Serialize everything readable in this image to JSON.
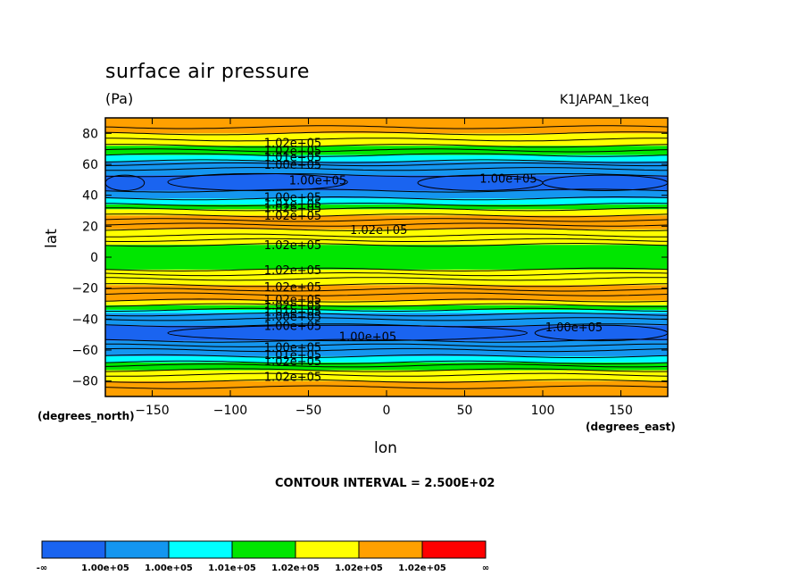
{
  "title": "surface air pressure",
  "units": "(Pa)",
  "dataset": "K1JAPAN_1keq",
  "contour_interval": "CONTOUR INTERVAL = 2.500E+02",
  "colors": {
    "c1": "#1a64f0",
    "c2": "#1496f0",
    "c3": "#00ffff",
    "c4": "#00e600",
    "c5": "#ffff00",
    "c6": "#ffa000",
    "c7": "#ff0000"
  },
  "chart_data": {
    "type": "heatmap",
    "subtype": "filled contour",
    "title": "surface air pressure",
    "units": "(Pa)",
    "xlabel": "lon",
    "ylabel": "lat",
    "x_unit": "(degrees_east)",
    "y_unit": "(degrees_north)",
    "xlim": [
      -180,
      180
    ],
    "ylim": [
      -90,
      90
    ],
    "x_ticks": [
      -150,
      -100,
      -50,
      0,
      50,
      100,
      150
    ],
    "y_ticks": [
      80,
      60,
      40,
      20,
      0,
      -20,
      -40,
      -60,
      -80
    ],
    "grid": false,
    "contour_interval": 250,
    "colorbar": {
      "labels": [
        "-∞",
        "1.00e+05",
        "1.00e+05",
        "1.01e+05",
        "1.02e+05",
        "1.02e+05",
        "1.02e+05",
        "∞"
      ],
      "colors": [
        "#1a64f0",
        "#1496f0",
        "#00ffff",
        "#00e600",
        "#ffff00",
        "#ffa000",
        "#ff0000"
      ]
    },
    "zonal_bands": [
      {
        "lat": [
          -90,
          -80
        ],
        "color": "#ffa000"
      },
      {
        "lat": [
          -80,
          -73
        ],
        "color": "#ffff00"
      },
      {
        "lat": [
          -73,
          -68
        ],
        "color": "#00e600"
      },
      {
        "lat": [
          -68,
          -64
        ],
        "color": "#00ffff"
      },
      {
        "lat": [
          -64,
          -54
        ],
        "color": "#1496f0"
      },
      {
        "lat": [
          -54,
          -44
        ],
        "color": "#1a64f0"
      },
      {
        "lat": [
          -44,
          -36
        ],
        "color": "#1496f0"
      },
      {
        "lat": [
          -36,
          -34
        ],
        "color": "#00ffff"
      },
      {
        "lat": [
          -34,
          -31
        ],
        "color": "#00e600"
      },
      {
        "lat": [
          -31,
          -28
        ],
        "color": "#ffff00"
      },
      {
        "lat": [
          -28,
          -18
        ],
        "color": "#ffa000"
      },
      {
        "lat": [
          -18,
          -8
        ],
        "color": "#ffff00"
      },
      {
        "lat": [
          -8,
          8
        ],
        "color": "#00e600"
      },
      {
        "lat": [
          8,
          18
        ],
        "color": "#ffff00"
      },
      {
        "lat": [
          18,
          27
        ],
        "color": "#ffa000"
      },
      {
        "lat": [
          27,
          31
        ],
        "color": "#ffff00"
      },
      {
        "lat": [
          31,
          34
        ],
        "color": "#00e600"
      },
      {
        "lat": [
          34,
          38
        ],
        "color": "#00ffff"
      },
      {
        "lat": [
          38,
          43
        ],
        "color": "#1496f0"
      },
      {
        "lat": [
          43,
          53
        ],
        "color": "#1a64f0"
      },
      {
        "lat": [
          53,
          62
        ],
        "color": "#1496f0"
      },
      {
        "lat": [
          62,
          66
        ],
        "color": "#00ffff"
      },
      {
        "lat": [
          66,
          72
        ],
        "color": "#00e600"
      },
      {
        "lat": [
          72,
          80
        ],
        "color": "#ffff00"
      },
      {
        "lat": [
          80,
          90
        ],
        "color": "#ffa000"
      }
    ],
    "contour_lines_lat": [
      -84,
      -80,
      -76,
      -73,
      -70,
      -68,
      -64,
      -60,
      -57,
      -54,
      -44,
      -40,
      -37,
      -34,
      -31,
      -28,
      -24,
      -21,
      -18,
      -14,
      -11,
      -8,
      8,
      11,
      14,
      18,
      21,
      24,
      27,
      31,
      34,
      38,
      43,
      53,
      57,
      60,
      62,
      66,
      69,
      72,
      76,
      80,
      84
    ],
    "low_cells": [
      {
        "lon": [
          -180,
          -155
        ],
        "lat": [
          43,
          53
        ]
      },
      {
        "lon": [
          -140,
          -25
        ],
        "lat": [
          43,
          54
        ]
      },
      {
        "lon": [
          20,
          100
        ],
        "lat": [
          43,
          53
        ]
      },
      {
        "lon": [
          100,
          180
        ],
        "lat": [
          43,
          53
        ]
      },
      {
        "lon": [
          -140,
          90
        ],
        "lat": [
          -54,
          -44
        ]
      },
      {
        "lon": [
          95,
          180
        ],
        "lat": [
          -54,
          -44
        ]
      }
    ],
    "contour_labels": [
      {
        "text": "1.02e+05",
        "lon": -60,
        "lat": 74
      },
      {
        "text": "1.02e+05",
        "lon": -60,
        "lat": 69
      },
      {
        "text": "1.01e+05",
        "lon": -60,
        "lat": 65
      },
      {
        "text": "1.00e+05",
        "lon": -60,
        "lat": 60
      },
      {
        "text": "1.00e+05",
        "lon": -44,
        "lat": 50
      },
      {
        "text": "1.00e+05",
        "lon": 78,
        "lat": 51
      },
      {
        "text": "1.00e+05",
        "lon": -60,
        "lat": 39
      },
      {
        "text": "1.01e+05",
        "lon": -60,
        "lat": 35
      },
      {
        "text": "1.02e+05",
        "lon": -60,
        "lat": 32
      },
      {
        "text": "1.02e+05",
        "lon": -60,
        "lat": 27
      },
      {
        "text": "1.02e+05",
        "lon": -5,
        "lat": 18
      },
      {
        "text": "1.02e+05",
        "lon": -60,
        "lat": 8
      },
      {
        "text": "1.02e+05",
        "lon": -60,
        "lat": -8
      },
      {
        "text": "1.02e+05",
        "lon": -60,
        "lat": -19
      },
      {
        "text": "1.02e+05",
        "lon": -60,
        "lat": -27
      },
      {
        "text": "1.02e+05",
        "lon": -60,
        "lat": -31
      },
      {
        "text": "1.01e+05",
        "lon": -60,
        "lat": -35
      },
      {
        "text": "1.00e+05",
        "lon": -60,
        "lat": -38
      },
      {
        "text": "1.00e+05",
        "lon": -60,
        "lat": -44
      },
      {
        "text": "1.00e+05",
        "lon": -12,
        "lat": -51
      },
      {
        "text": "1.00e+05",
        "lon": 120,
        "lat": -45
      },
      {
        "text": "1.00e+05",
        "lon": -60,
        "lat": -58
      },
      {
        "text": "1.01e+05",
        "lon": -60,
        "lat": -63
      },
      {
        "text": "1.02e+05",
        "lon": -60,
        "lat": -67
      },
      {
        "text": "1.02e+05",
        "lon": -60,
        "lat": -77
      }
    ]
  }
}
